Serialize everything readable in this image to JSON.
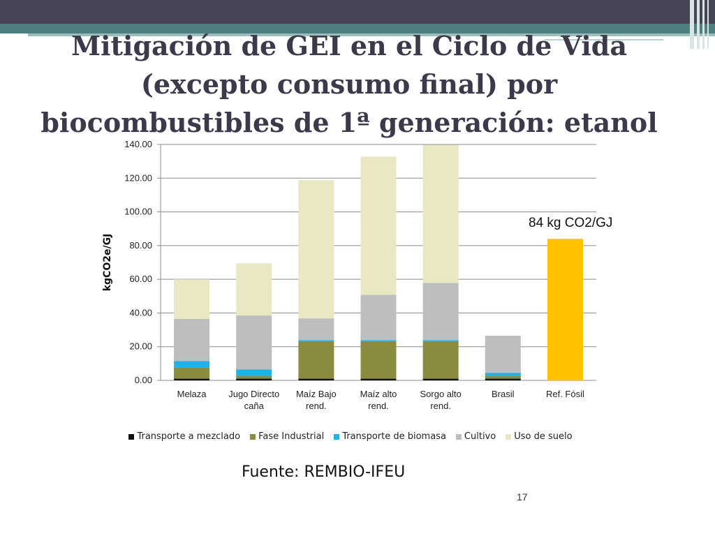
{
  "slide": {
    "title_lines": [
      "Mitigación de GEI en el Ciclo de Vida",
      "(excepto consumo final) por",
      "biocombustibles de 1ª generación: etanol"
    ],
    "source": "Fuente: REMBIO-IFEU",
    "page_number": "17",
    "annotation": "84 kg CO2/GJ"
  },
  "chart_data": {
    "type": "bar",
    "stacked": true,
    "ylabel": "kgCO2e/GJ",
    "ylim": [
      0,
      140
    ],
    "yticks": [
      "0.00",
      "20.00",
      "40.00",
      "60.00",
      "80.00",
      "100.00",
      "120.00",
      "140.00"
    ],
    "grid": true,
    "legend_position": "bottom",
    "categories": [
      [
        "Melaza"
      ],
      [
        "Jugo Directo",
        "caña"
      ],
      [
        "Maíz Bajo",
        "rend."
      ],
      [
        "Maíz alto",
        "rend."
      ],
      [
        "Sorgo alto",
        "rend."
      ],
      [
        "Brasil"
      ],
      [
        "Ref. Fósil"
      ]
    ],
    "series": [
      {
        "name": "Transporte a mezclado",
        "color": "#111111",
        "values": [
          1,
          1,
          1,
          1,
          1,
          1,
          0
        ]
      },
      {
        "name": "Fase Industrial",
        "color": "#8b8b3f",
        "values": [
          6.5,
          1.5,
          22,
          22,
          22,
          1.5,
          0
        ]
      },
      {
        "name": "Transporte de biomasa",
        "color": "#1cb4e8",
        "values": [
          4,
          4,
          0.8,
          0.8,
          0.8,
          2,
          0
        ]
      },
      {
        "name": "Cultivo",
        "color": "#bebebe",
        "values": [
          25,
          32,
          13,
          27,
          34,
          22,
          0
        ]
      },
      {
        "name": "Uso de suelo",
        "color": "#e8e8c2",
        "values": [
          23.5,
          31,
          82,
          82,
          82,
          0,
          0
        ]
      },
      {
        "name": "Ref. Fósil",
        "color": "#ffc000",
        "values": [
          0,
          0,
          0,
          0,
          0,
          0,
          84
        ],
        "in_legend": false
      }
    ]
  }
}
